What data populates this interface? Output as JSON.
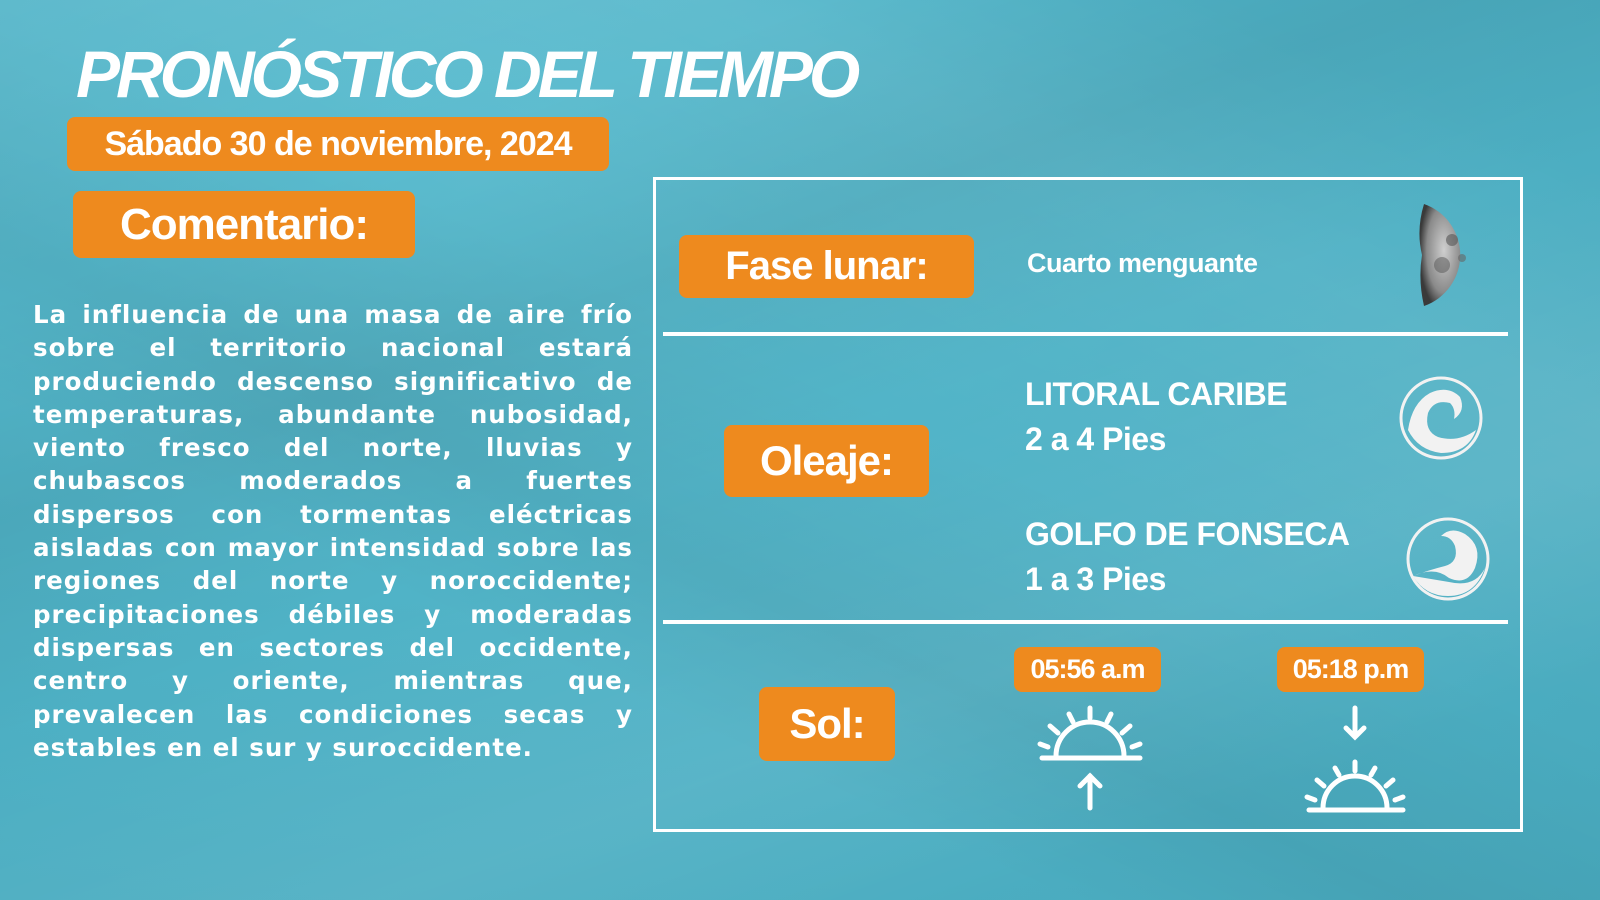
{
  "header": {
    "title": "PRONÓSTICO DEL TIEMPO",
    "date": "Sábado 30 de noviembre, 2024"
  },
  "comment": {
    "label": "Comentario:",
    "text": "La influencia de una masa de aire frío sobre el territorio nacional estará produciendo descenso significativo de temperaturas, abundante nubosidad, viento fresco del norte, lluvias y chubascos moderados a fuertes dispersos con tormentas eléctricas aisladas con mayor intensidad sobre las regiones del norte y noroccidente; precipitaciones débiles y moderadas dispersas en sectores del occidente, centro y oriente, mientras que, prevalecen las condiciones secas y estables en el sur y suroccidente."
  },
  "moon": {
    "label": "Fase lunar:",
    "phase": "Cuarto menguante",
    "icon": "waning-half-moon"
  },
  "waves": {
    "label": "Oleaje:",
    "regions": [
      {
        "name": "LITORAL CARIBE",
        "value": "2 a 4 Pies",
        "icon": "wave-icon"
      },
      {
        "name": "GOLFO DE FONSECA",
        "value": "1 a 3 Pies",
        "icon": "wave-icon"
      }
    ]
  },
  "sun": {
    "label": "Sol:",
    "sunrise": "05:56 a.m",
    "sunset": "05:18 p.m"
  },
  "colors": {
    "background": "#4fb2c6",
    "accent": "#ee8a1e",
    "text": "#ffffff"
  }
}
